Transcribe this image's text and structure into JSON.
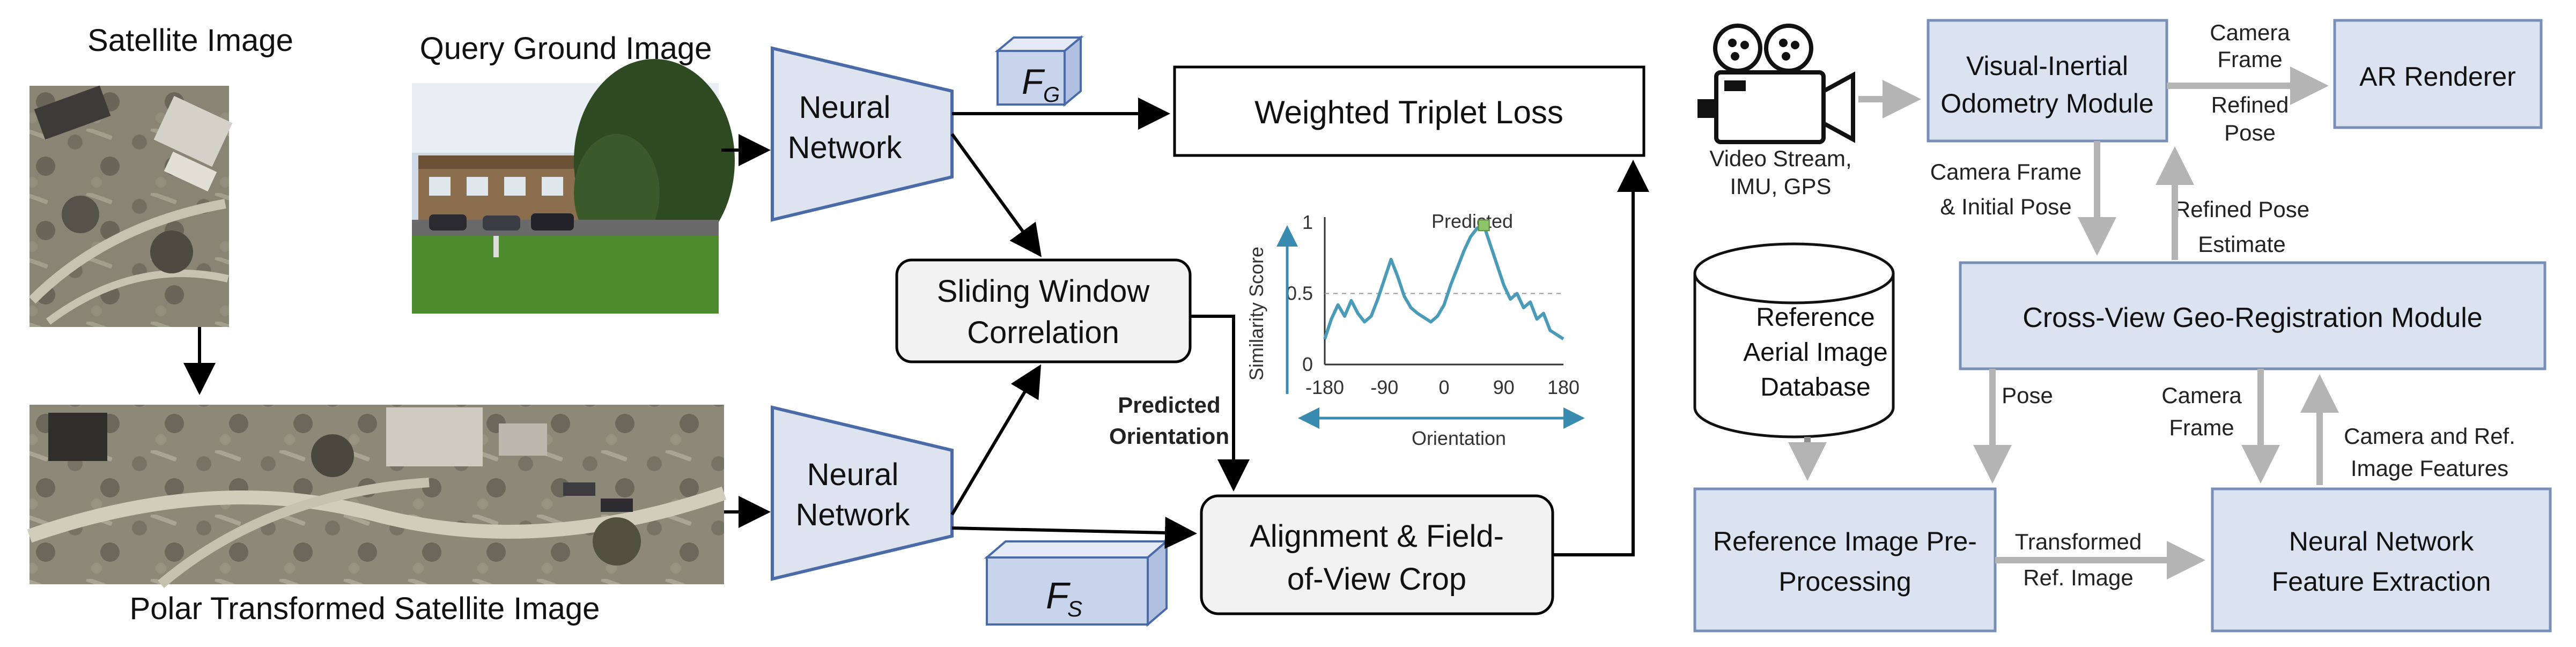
{
  "left_panel": {
    "labels": {
      "satellite_image": "Satellite Image",
      "query_ground_image": "Query Ground Image",
      "polar_transformed": "Polar Transformed Satellite Image"
    },
    "blocks": {
      "neural_network_top": [
        "Neural",
        "Network"
      ],
      "neural_network_bottom": [
        "Neural",
        "Network"
      ],
      "weighted_triplet_loss": "Weighted Triplet Loss",
      "sliding_window": [
        "Sliding Window",
        "Correlation"
      ],
      "alignment": [
        "Alignment & Field-",
        "of-View Crop"
      ],
      "predicted_orientation": [
        "Predicted",
        "Orientation"
      ]
    },
    "features": {
      "fg": {
        "main": "F",
        "sub": "G"
      },
      "fs": {
        "main": "F",
        "sub": "S"
      }
    },
    "colors": {
      "nn_fill": "#dde4f0",
      "nn_stroke": "#4a6aa8",
      "feature_fill": "#c7d4ec",
      "block_fill": "#f2f2f2",
      "plot_line": "#4a9bb8",
      "plot_axis_arrow": "#3a8bb0",
      "predicted_marker": "#8cc56a"
    }
  },
  "chart_data": {
    "type": "line",
    "xlabel": "Orientation",
    "ylabel": "Similarity Score",
    "xticks": [
      "-180",
      "-90",
      "0",
      "90",
      "180"
    ],
    "yticks": [
      "0",
      "0.5",
      "1"
    ],
    "xlim": [
      -180,
      180
    ],
    "ylim": [
      0,
      1
    ],
    "annotation": "Predicted",
    "predicted_point": {
      "x": 60,
      "y": 0.98
    },
    "reference_line_y": 0.5,
    "series": [
      {
        "x": [
          -180,
          -170,
          -160,
          -150,
          -140,
          -130,
          -120,
          -110,
          -100,
          -90,
          -80,
          -70,
          -60,
          -50,
          -40,
          -30,
          -20,
          -10,
          0,
          10,
          20,
          30,
          40,
          50,
          60,
          70,
          80,
          90,
          100,
          110,
          120,
          130,
          140,
          150,
          160,
          170,
          180
        ],
        "values": [
          0.18,
          0.32,
          0.42,
          0.34,
          0.45,
          0.36,
          0.3,
          0.34,
          0.46,
          0.6,
          0.74,
          0.62,
          0.48,
          0.4,
          0.36,
          0.33,
          0.3,
          0.34,
          0.42,
          0.56,
          0.68,
          0.8,
          0.9,
          0.96,
          0.98,
          0.84,
          0.7,
          0.56,
          0.46,
          0.5,
          0.4,
          0.44,
          0.32,
          0.36,
          0.24,
          0.21,
          0.18
        ]
      }
    ]
  },
  "right_panel": {
    "video_stream": [
      "Video Stream,",
      "IMU, GPS"
    ],
    "vio_module": [
      "Visual-Inertial",
      "Odometry Module"
    ],
    "ar_renderer": "AR Renderer",
    "camera_frame_top": [
      "Camera",
      "Frame"
    ],
    "refined_pose_top": [
      "Refined",
      "Pose"
    ],
    "camera_frame_initial_pose": [
      "Camera Frame",
      "& Initial Pose"
    ],
    "refined_pose_estimate": [
      "Refined Pose",
      "Estimate"
    ],
    "reference_db": [
      "Reference",
      "Aerial Image",
      "Database"
    ],
    "cross_view_module": "Cross-View Geo-Registration Module",
    "pose": "Pose",
    "camera_frame_mid": [
      "Camera",
      "Frame"
    ],
    "camera_ref_features": [
      "Camera and Ref.",
      "Image Features"
    ],
    "ref_preprocessing": [
      "Reference Image Pre-",
      "Processing"
    ],
    "transformed_ref": [
      "Transformed",
      "Ref. Image"
    ],
    "nn_feature_extraction": [
      "Neural Network",
      "Feature Extraction"
    ],
    "colors": {
      "module_fill": "#dbe3f1",
      "module_stroke": "#7a8fb8",
      "arrow": "#b4b4b4"
    }
  }
}
